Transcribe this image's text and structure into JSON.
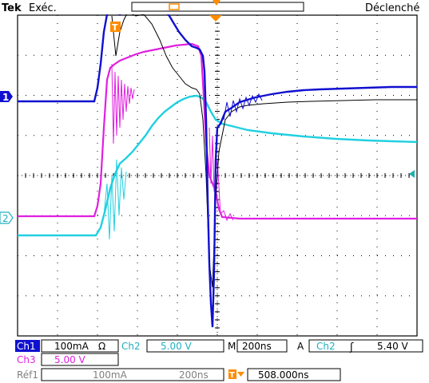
{
  "header": {
    "brand": "Tek",
    "run_state": "Exéc.",
    "trigger_state": "Déclenché"
  },
  "markers": {
    "ch1": "1",
    "ch2": "2",
    "trigger_position": "T"
  },
  "status": {
    "ch1_label": "Ch1",
    "ch1_scale": "100mA",
    "ch1_coupling_symbol": "Ω",
    "ch2_label": "Ch2",
    "ch2_scale": "5.00 V",
    "timebase_prefix": "M",
    "timebase": "200ns",
    "trigger_prefix": "A",
    "trigger_source": "Ch2",
    "trigger_slope_symbol": "ʃ",
    "trigger_level": "5.40 V",
    "ch3_label": "Ch3",
    "ch3_scale": "5.00 V",
    "ref_label": "Réf1",
    "ref_scale": "100mA",
    "ref_time": "200ns",
    "trigger_delay": "508.000ns"
  },
  "colors": {
    "ch1": "#1010d0",
    "ch2": "#20d0e0",
    "ch3": "#e020e0",
    "math": "#000000",
    "accent": "#ff8c00",
    "grid": "#000000"
  },
  "icons": {
    "trigger_position": "orange-T-flag",
    "trigger_level": "orange-arrow-left",
    "delay_marker": "orange-T-arrow"
  }
}
